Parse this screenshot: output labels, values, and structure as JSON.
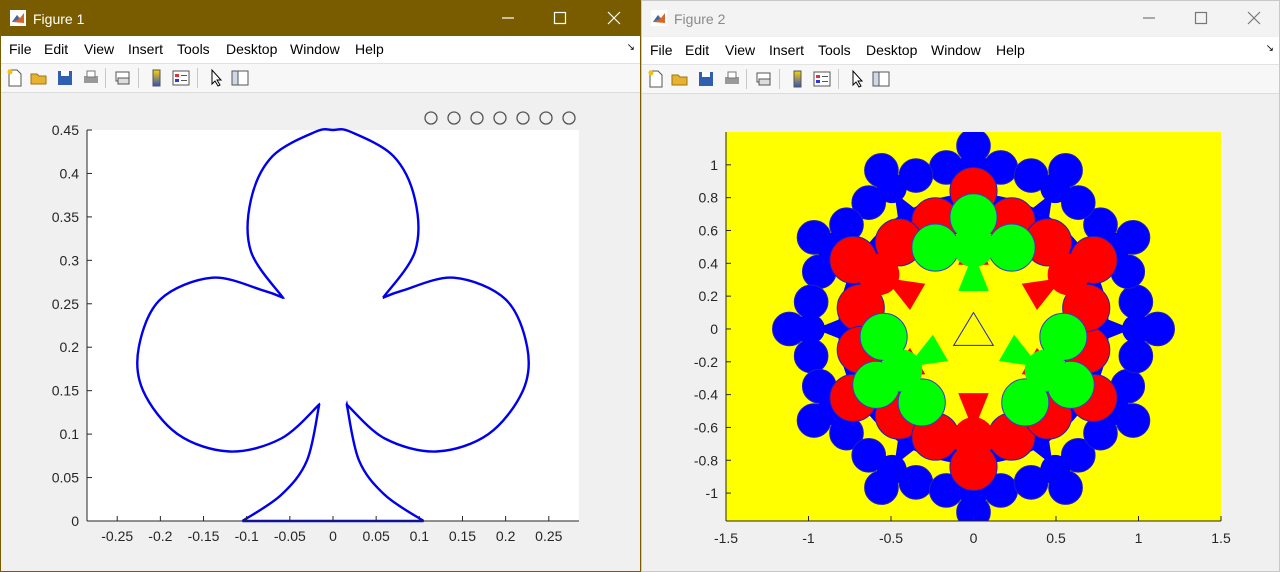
{
  "fig1": {
    "title": "Figure 1",
    "menu": [
      "File",
      "Edit",
      "View",
      "Insert",
      "Tools",
      "Desktop",
      "Window",
      "Help"
    ],
    "axes_toolbar_icons": [
      "brush-icon",
      "data-tips-icon",
      "legend-icon",
      "pan-icon",
      "zoom-in-icon",
      "zoom-out-icon",
      "home-icon"
    ]
  },
  "fig2": {
    "title": "Figure 2",
    "menu": [
      "File",
      "Edit",
      "View",
      "Insert",
      "Tools",
      "Desktop",
      "Window",
      "Help"
    ]
  },
  "toolbar_icons": [
    "new-figure-icon",
    "open-file-icon",
    "save-icon",
    "print-icon",
    "link-plot-icon",
    "colorbar-icon",
    "legend-icon",
    "select-arrow-icon",
    "property-inspector-icon"
  ],
  "colors": {
    "club_line": "#0000ee",
    "yellow": "#ffff00",
    "blue": "#0000ff",
    "red": "#ff0000",
    "green": "#00ff00",
    "titlebar_active": "#7a5c00"
  },
  "chart_data": [
    {
      "type": "line",
      "title": "",
      "xlabel": "",
      "ylabel": "",
      "xlim": [
        -0.285,
        0.285
      ],
      "ylim": [
        0,
        0.45
      ],
      "xticks": [
        "-0.25",
        "-0.2",
        "-0.15",
        "-0.1",
        "-0.05",
        "0",
        "0.05",
        "0.1",
        "0.15",
        "0.2",
        "0.25"
      ],
      "yticks": [
        "0",
        "0.05",
        "0.1",
        "0.15",
        "0.2",
        "0.25",
        "0.3",
        "0.35",
        "0.4",
        "0.45"
      ],
      "series": [
        {
          "description_shape": "club",
          "stem_base_x": [
            -0.105,
            0.105
          ],
          "top_y": 0.45,
          "left_x": -0.225,
          "right_x": 0.225
        }
      ],
      "grid": false
    },
    {
      "type": "area",
      "title": "",
      "xlabel": "",
      "ylabel": "",
      "xlim": [
        -1.5,
        1.5
      ],
      "ylim": [
        -1.17,
        1.2
      ],
      "xticks": [
        "-1.5",
        "-1",
        "-0.5",
        "0",
        "0.5",
        "1",
        "1.5"
      ],
      "yticks": [
        "-1",
        "-0.8",
        "-0.6",
        "-0.4",
        "-0.2",
        "0",
        "0.2",
        "0.4",
        "0.6",
        "0.8",
        "1"
      ],
      "background": "yellow",
      "layers": [
        "blue",
        "red",
        "green"
      ],
      "grid": false
    }
  ]
}
